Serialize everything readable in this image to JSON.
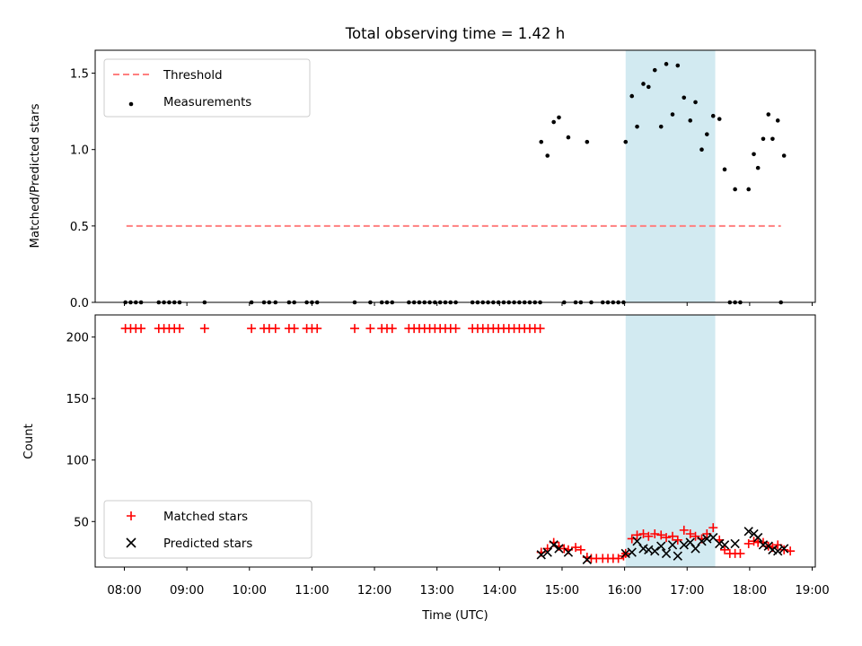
{
  "chart_data": [
    {
      "type": "scatter",
      "title": "Total observing time = 1.42 h",
      "xlabel": "",
      "ylabel": "Matched/Predicted stars",
      "xlim": [
        "07:32",
        "19:03"
      ],
      "ylim": [
        0,
        1.65
      ],
      "y_ticks": [
        0.0,
        0.5,
        1.0,
        1.5
      ],
      "y_tick_labels": [
        "0.0",
        "0.5",
        "1.0",
        "1.5"
      ],
      "shaded_interval": [
        "16:01",
        "17:27"
      ],
      "shaded_color": "#add8e6",
      "legend": {
        "placement": "top-left",
        "entries": [
          "Threshold",
          "Measurements"
        ]
      },
      "series": [
        {
          "name": "Threshold",
          "kind": "dashed-line",
          "color": "#ff7f7f",
          "x": [
            "08:02",
            "18:30"
          ],
          "y": [
            0.5,
            0.5
          ]
        },
        {
          "name": "Measurements",
          "kind": "dots",
          "color": "#000000",
          "points": [
            [
              "08:01",
              0
            ],
            [
              "08:06",
              0
            ],
            [
              "08:11",
              0
            ],
            [
              "08:16",
              0
            ],
            [
              "08:33",
              0
            ],
            [
              "08:38",
              0
            ],
            [
              "08:43",
              0
            ],
            [
              "08:48",
              0
            ],
            [
              "08:53",
              0
            ],
            [
              "09:17",
              0
            ],
            [
              "10:02",
              0
            ],
            [
              "10:14",
              0
            ],
            [
              "10:19",
              0
            ],
            [
              "10:25",
              0
            ],
            [
              "10:38",
              0
            ],
            [
              "10:43",
              0
            ],
            [
              "10:55",
              0
            ],
            [
              "11:00",
              0
            ],
            [
              "11:05",
              0
            ],
            [
              "11:41",
              0
            ],
            [
              "11:56",
              0
            ],
            [
              "12:07",
              0
            ],
            [
              "12:12",
              0
            ],
            [
              "12:17",
              0
            ],
            [
              "12:33",
              0
            ],
            [
              "12:38",
              0
            ],
            [
              "12:43",
              0
            ],
            [
              "12:48",
              0
            ],
            [
              "12:53",
              0
            ],
            [
              "12:58",
              0
            ],
            [
              "13:03",
              0
            ],
            [
              "13:08",
              0
            ],
            [
              "13:13",
              0
            ],
            [
              "13:18",
              0
            ],
            [
              "13:34",
              0
            ],
            [
              "13:39",
              0
            ],
            [
              "13:44",
              0
            ],
            [
              "13:49",
              0
            ],
            [
              "13:54",
              0
            ],
            [
              "13:59",
              0
            ],
            [
              "14:04",
              0
            ],
            [
              "14:09",
              0
            ],
            [
              "14:14",
              0
            ],
            [
              "14:19",
              0
            ],
            [
              "14:24",
              0
            ],
            [
              "14:29",
              0
            ],
            [
              "14:34",
              0
            ],
            [
              "14:39",
              0
            ],
            [
              "15:02",
              0
            ],
            [
              "15:13",
              0
            ],
            [
              "15:18",
              0
            ],
            [
              "15:28",
              0
            ],
            [
              "15:39",
              0
            ],
            [
              "15:44",
              0
            ],
            [
              "15:49",
              0
            ],
            [
              "15:54",
              0
            ],
            [
              "15:59",
              0
            ],
            [
              "17:41",
              0
            ],
            [
              "17:46",
              0
            ],
            [
              "17:51",
              0
            ],
            [
              "18:30",
              0
            ],
            [
              "14:40",
              1.05
            ],
            [
              "14:46",
              0.96
            ],
            [
              "14:52",
              1.18
            ],
            [
              "14:57",
              1.21
            ],
            [
              "15:06",
              1.08
            ],
            [
              "15:24",
              1.05
            ],
            [
              "16:01",
              1.05
            ],
            [
              "16:07",
              1.35
            ],
            [
              "16:12",
              1.15
            ],
            [
              "16:18",
              1.43
            ],
            [
              "16:23",
              1.41
            ],
            [
              "16:29",
              1.52
            ],
            [
              "16:35",
              1.15
            ],
            [
              "16:40",
              1.56
            ],
            [
              "16:46",
              1.23
            ],
            [
              "16:51",
              1.55
            ],
            [
              "16:57",
              1.34
            ],
            [
              "17:03",
              1.19
            ],
            [
              "17:08",
              1.31
            ],
            [
              "17:14",
              1.0
            ],
            [
              "17:19",
              1.1
            ],
            [
              "17:25",
              1.22
            ],
            [
              "17:31",
              1.2
            ],
            [
              "17:36",
              0.87
            ],
            [
              "17:46",
              0.74
            ],
            [
              "17:59",
              0.74
            ],
            [
              "18:04",
              0.97
            ],
            [
              "18:08",
              0.88
            ],
            [
              "18:13",
              1.07
            ],
            [
              "18:18",
              1.23
            ],
            [
              "18:22",
              1.07
            ],
            [
              "18:27",
              1.19
            ],
            [
              "18:33",
              0.96
            ]
          ]
        }
      ]
    },
    {
      "type": "scatter",
      "title": "",
      "xlabel": "Time (UTC)",
      "ylabel": "Count",
      "xlim": [
        "07:32",
        "19:03"
      ],
      "ylim": [
        13,
        218
      ],
      "y_ticks": [
        50,
        100,
        150,
        200
      ],
      "y_tick_labels": [
        "50",
        "100",
        "150",
        "200"
      ],
      "x_ticks": [
        "08:00",
        "09:00",
        "10:00",
        "11:00",
        "12:00",
        "13:00",
        "14:00",
        "15:00",
        "16:00",
        "17:00",
        "18:00",
        "19:00"
      ],
      "shaded_interval": [
        "16:01",
        "17:27"
      ],
      "shaded_color": "#add8e6",
      "legend": {
        "placement": "bottom-left",
        "entries": [
          "Matched stars",
          "Predicted stars"
        ]
      },
      "series": [
        {
          "name": "Matched stars",
          "kind": "plus",
          "color": "#ff0000",
          "points": [
            [
              "08:01",
              207
            ],
            [
              "08:06",
              207
            ],
            [
              "08:11",
              207
            ],
            [
              "08:16",
              207
            ],
            [
              "08:33",
              207
            ],
            [
              "08:38",
              207
            ],
            [
              "08:43",
              207
            ],
            [
              "08:48",
              207
            ],
            [
              "08:53",
              207
            ],
            [
              "09:17",
              207
            ],
            [
              "10:02",
              207
            ],
            [
              "10:14",
              207
            ],
            [
              "10:19",
              207
            ],
            [
              "10:25",
              207
            ],
            [
              "10:38",
              207
            ],
            [
              "10:43",
              207
            ],
            [
              "10:55",
              207
            ],
            [
              "11:00",
              207
            ],
            [
              "11:05",
              207
            ],
            [
              "11:41",
              207
            ],
            [
              "11:56",
              207
            ],
            [
              "12:07",
              207
            ],
            [
              "12:12",
              207
            ],
            [
              "12:17",
              207
            ],
            [
              "12:33",
              207
            ],
            [
              "12:38",
              207
            ],
            [
              "12:43",
              207
            ],
            [
              "12:48",
              207
            ],
            [
              "12:53",
              207
            ],
            [
              "12:58",
              207
            ],
            [
              "13:03",
              207
            ],
            [
              "13:08",
              207
            ],
            [
              "13:13",
              207
            ],
            [
              "13:18",
              207
            ],
            [
              "13:34",
              207
            ],
            [
              "13:39",
              207
            ],
            [
              "13:44",
              207
            ],
            [
              "13:49",
              207
            ],
            [
              "13:54",
              207
            ],
            [
              "13:59",
              207
            ],
            [
              "14:04",
              207
            ],
            [
              "14:09",
              207
            ],
            [
              "14:14",
              207
            ],
            [
              "14:19",
              207
            ],
            [
              "14:24",
              207
            ],
            [
              "14:29",
              207
            ],
            [
              "14:34",
              207
            ],
            [
              "14:39",
              207
            ],
            [
              "14:40",
              25
            ],
            [
              "14:46",
              28
            ],
            [
              "14:52",
              33
            ],
            [
              "14:57",
              30
            ],
            [
              "15:02",
              28
            ],
            [
              "15:06",
              27
            ],
            [
              "15:13",
              29
            ],
            [
              "15:18",
              27
            ],
            [
              "15:24",
              21
            ],
            [
              "15:28",
              20
            ],
            [
              "15:33",
              20
            ],
            [
              "15:39",
              20
            ],
            [
              "15:44",
              20
            ],
            [
              "15:49",
              20
            ],
            [
              "15:54",
              20
            ],
            [
              "15:59",
              22
            ],
            [
              "16:01",
              24
            ],
            [
              "16:07",
              36
            ],
            [
              "16:12",
              39
            ],
            [
              "16:18",
              40
            ],
            [
              "16:23",
              38
            ],
            [
              "16:29",
              40
            ],
            [
              "16:35",
              39
            ],
            [
              "16:40",
              37
            ],
            [
              "16:46",
              38
            ],
            [
              "16:51",
              35
            ],
            [
              "16:57",
              43
            ],
            [
              "17:03",
              40
            ],
            [
              "17:08",
              38
            ],
            [
              "17:14",
              36
            ],
            [
              "17:19",
              40
            ],
            [
              "17:25",
              45
            ],
            [
              "17:31",
              35
            ],
            [
              "17:36",
              27
            ],
            [
              "17:41",
              24
            ],
            [
              "17:46",
              24
            ],
            [
              "17:51",
              24
            ],
            [
              "17:59",
              32
            ],
            [
              "18:04",
              34
            ],
            [
              "18:08",
              33
            ],
            [
              "18:13",
              33
            ],
            [
              "18:18",
              30
            ],
            [
              "18:22",
              29
            ],
            [
              "18:27",
              31
            ],
            [
              "18:33",
              27
            ],
            [
              "18:39",
              26
            ]
          ]
        },
        {
          "name": "Predicted stars",
          "kind": "x",
          "color": "#000000",
          "points": [
            [
              "14:40",
              23
            ],
            [
              "14:46",
              25
            ],
            [
              "14:52",
              31
            ],
            [
              "14:57",
              28
            ],
            [
              "15:06",
              25
            ],
            [
              "15:24",
              19
            ],
            [
              "16:01",
              24
            ],
            [
              "16:07",
              25
            ],
            [
              "16:12",
              34
            ],
            [
              "16:18",
              28
            ],
            [
              "16:23",
              27
            ],
            [
              "16:29",
              26
            ],
            [
              "16:35",
              30
            ],
            [
              "16:40",
              24
            ],
            [
              "16:46",
              31
            ],
            [
              "16:51",
              22
            ],
            [
              "16:57",
              31
            ],
            [
              "17:03",
              33
            ],
            [
              "17:08",
              28
            ],
            [
              "17:14",
              34
            ],
            [
              "17:19",
              36
            ],
            [
              "17:25",
              37
            ],
            [
              "17:31",
              32
            ],
            [
              "17:36",
              31
            ],
            [
              "17:46",
              32
            ],
            [
              "17:59",
              42
            ],
            [
              "18:04",
              40
            ],
            [
              "18:08",
              37
            ],
            [
              "18:13",
              31
            ],
            [
              "18:18",
              30
            ],
            [
              "18:22",
              27
            ],
            [
              "18:27",
              26
            ],
            [
              "18:33",
              28
            ]
          ]
        }
      ]
    }
  ]
}
